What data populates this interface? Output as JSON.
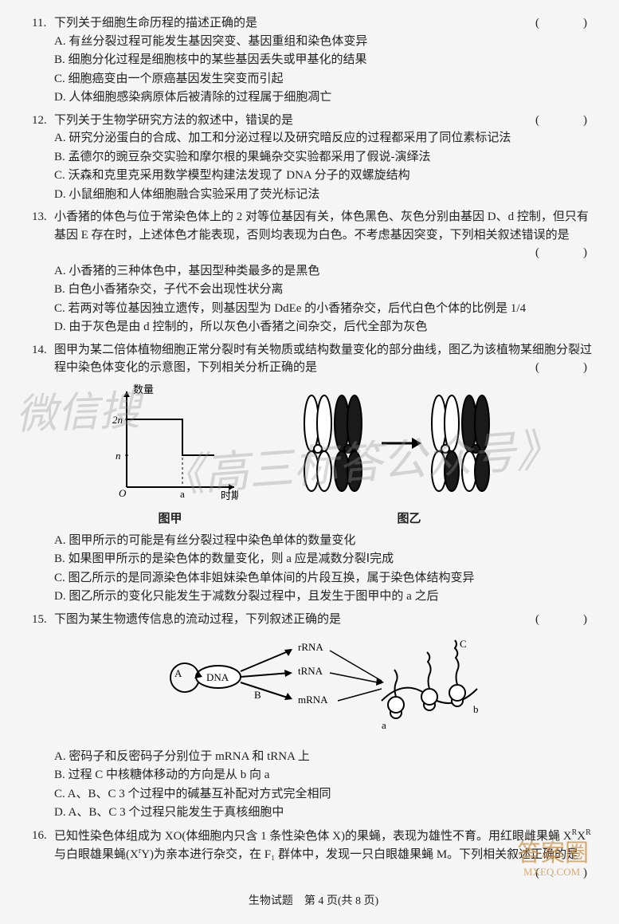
{
  "questions": [
    {
      "num": "11.",
      "stem": "下列关于细胞生命历程的描述正确的是",
      "paren": "(　)",
      "options": [
        "A. 有丝分裂过程可能发生基因突变、基因重组和染色体变异",
        "B. 细胞分化过程是细胞核中的某些基因丢失或甲基化的结果",
        "C. 细胞癌变由一个原癌基因发生突变而引起",
        "D. 人体细胞感染病原体后被清除的过程属于细胞凋亡"
      ]
    },
    {
      "num": "12.",
      "stem": "下列关于生物学研究方法的叙述中，错误的是",
      "paren": "(　)",
      "options": [
        "A. 研究分泌蛋白的合成、加工和分泌过程以及研究暗反应的过程都采用了同位素标记法",
        "B. 孟德尔的豌豆杂交实验和摩尔根的果蝇杂交实验都采用了假说-演绎法",
        "C. 沃森和克里克采用数学模型构建法发现了 DNA 分子的双螺旋结构",
        "D. 小鼠细胞和人体细胞融合实验采用了荧光标记法"
      ]
    },
    {
      "num": "13.",
      "stem": "小香猪的体色与位于常染色体上的 2 对等位基因有关，体色黑色、灰色分别由基因 D、d 控制，但只有基因 E 存在时，上述体色才能表现，否则均表现为白色。不考虑基因突变，下列相关叙述错误的是",
      "paren": "(　)",
      "options": [
        "A. 小香猪的三种体色中，基因型种类最多的是黑色",
        "B. 白色小香猪杂交，子代不会出现性状分离",
        "C. 若两对等位基因独立遗传，则基因型为 DdEe 的小香猪杂交，后代白色个体的比例是 1/4",
        "D. 由于灰色是由 d 控制的，所以灰色小香猪之间杂交，后代全部为灰色"
      ]
    },
    {
      "num": "14.",
      "stem": "图甲为某二倍体植物细胞正常分裂时有关物质或结构数量变化的部分曲线，图乙为该植物某细胞分裂过程中染色体变化的示意图，下列相关分析正确的是",
      "paren": "(　)",
      "options": [
        "A. 图甲所示的可能是有丝分裂过程中染色单体的数量变化",
        "B. 如果图甲所示的是染色体的数量变化，则 a 应是减数分裂Ⅰ完成",
        "C. 图乙所示的是同源染色体非姐妹染色单体间的片段互换，属于染色体结构变异",
        "D. 图乙所示的变化只能发生于减数分裂过程中，且发生于图甲中的 a 之后"
      ],
      "figures": {
        "jia": {
          "type": "line",
          "xlabel": "时期",
          "ylabel": "数量",
          "yticks": [
            "n",
            "2n"
          ],
          "xmark": "a",
          "line_color": "#000000",
          "dash_color": "#000000",
          "bg": "#f5f5f5",
          "label": "图甲"
        },
        "yi": {
          "type": "chromosome-crossover",
          "colors": {
            "dark": "#1a1a1a",
            "light": "#ffffff",
            "outline": "#000000"
          },
          "arrow_color": "#000000",
          "label": "图乙"
        }
      }
    },
    {
      "num": "15.",
      "stem": "下图为某生物遗传信息的流动过程，下列叙述正确的是",
      "paren": "(　)",
      "options": [
        "A. 密码子和反密码子分别位于 mRNA 和 tRNA 上",
        "B. 过程 C 中核糖体移动的方向是从 b 向 a",
        "C. A、B、C 3 个过程中的碱基互补配对方式完全相同",
        "D. A、B、C 3 个过程只能发生于真核细胞中"
      ],
      "figure": {
        "type": "flow-diagram",
        "nodes": [
          "DNA",
          "rRNA",
          "tRNA",
          "mRNA"
        ],
        "labels": [
          "A",
          "B",
          "C",
          "a",
          "b"
        ],
        "colors": {
          "line": "#000000",
          "fill": "#ffffff"
        }
      }
    },
    {
      "num": "16.",
      "stem_html": "已知性染色体组成为 XO(体细胞内只含 1 条性染色体 X)的果蝇，表现为雄性不育。用红眼雌果蝇 X<sup>R</sup>X<sup>R</sup> 与白眼雄果蝇(X<sup>r</sup>Y)为亲本进行杂交，在 F₁ 群体中，发现一只白眼雄果蝇 M。下列相关叙述正确的是",
      "paren": "(　)",
      "options": []
    }
  ],
  "footer": "生物试题　第 4 页(共 8 页)",
  "watermark1": "微信搜",
  "watermark2": "《高三标答公众号》",
  "daan": {
    "text1": "答案",
    "text2": "MXEQ.COM",
    "color": "#cc9045"
  }
}
